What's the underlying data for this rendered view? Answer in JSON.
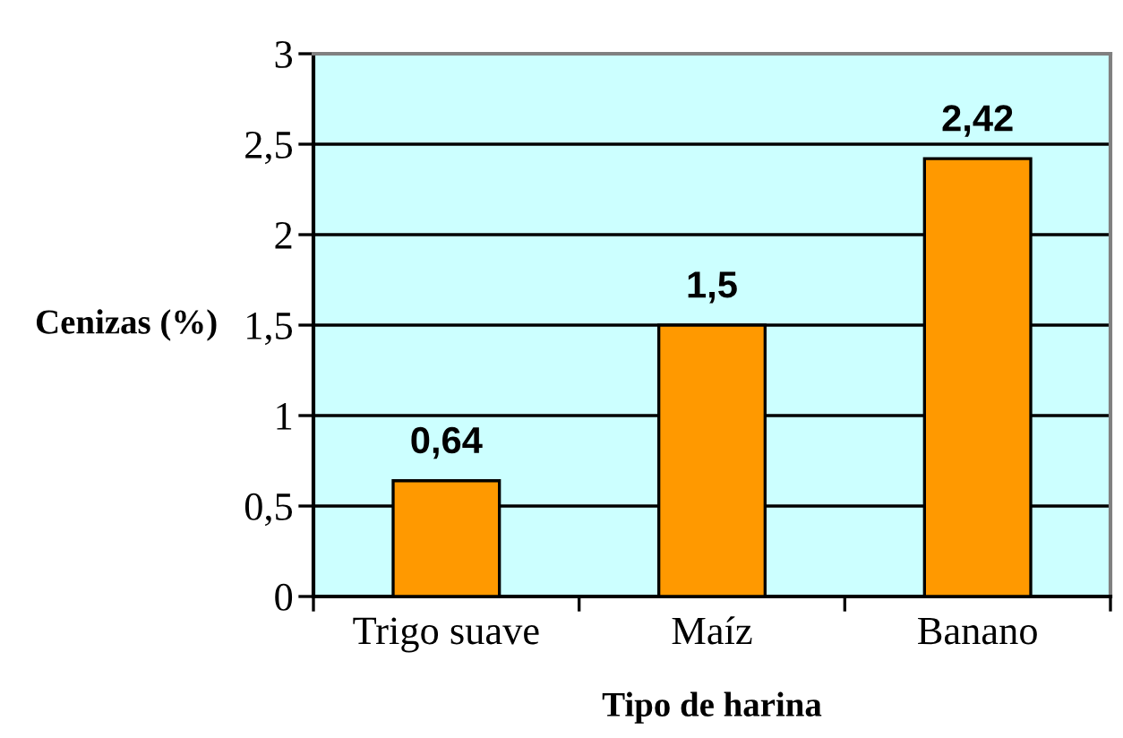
{
  "chart_data": {
    "type": "bar",
    "categories": [
      "Trigo suave",
      "Maíz",
      "Banano"
    ],
    "values": [
      0.64,
      1.5,
      2.42
    ],
    "value_labels": [
      "0,64",
      "1,5",
      "2,42"
    ],
    "color": "#ff9900",
    "xlabel": "Tipo de harina",
    "ylabel": "Cenizas (%)",
    "ylim": [
      0,
      3
    ],
    "yticks": [
      0,
      {
        "value": 0.5,
        "label": "0,5"
      },
      1,
      {
        "value": 1.5,
        "label": "1,5"
      },
      2,
      {
        "value": 2.5,
        "label": "2,5"
      },
      3
    ],
    "grid": "y",
    "legend": false
  }
}
